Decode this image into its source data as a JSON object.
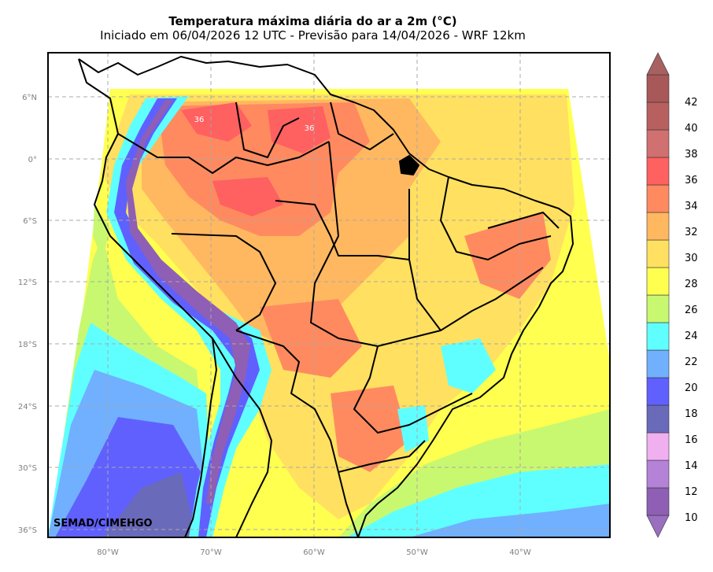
{
  "title": "Temperatura máxima diária do ar a 2m (°C)",
  "subtitle": "Iniciado em 06/04/2026 12 UTC - Previsão para 14/04/2026 - WRF 12km",
  "credit": "SEMAD/CIMEHGO",
  "lat_ticks": [
    "6°N",
    "0°",
    "6°S",
    "12°S",
    "18°S",
    "24°S",
    "30°S",
    "36°S"
  ],
  "lon_ticks": [
    "80°W",
    "70°W",
    "60°W",
    "50°W",
    "40°W"
  ],
  "map_labels": [
    "36",
    "36"
  ],
  "colorbar": {
    "labels": [
      "42",
      "40",
      "38",
      "36",
      "34",
      "32",
      "30",
      "28",
      "26",
      "24",
      "22",
      "20",
      "18",
      "16",
      "14",
      "12",
      "10"
    ],
    "colors_low_to_high": [
      "#9a6fc0",
      "#8e5fb4",
      "#b483d8",
      "#f0b0f0",
      "#6a6aba",
      "#6060ff",
      "#70b0ff",
      "#60ffff",
      "#c8f870",
      "#ffff50",
      "#ffe060",
      "#ffb860",
      "#ff8a60",
      "#ff6060",
      "#d07070",
      "#b86060",
      "#a85858",
      "#a86060"
    ]
  }
}
